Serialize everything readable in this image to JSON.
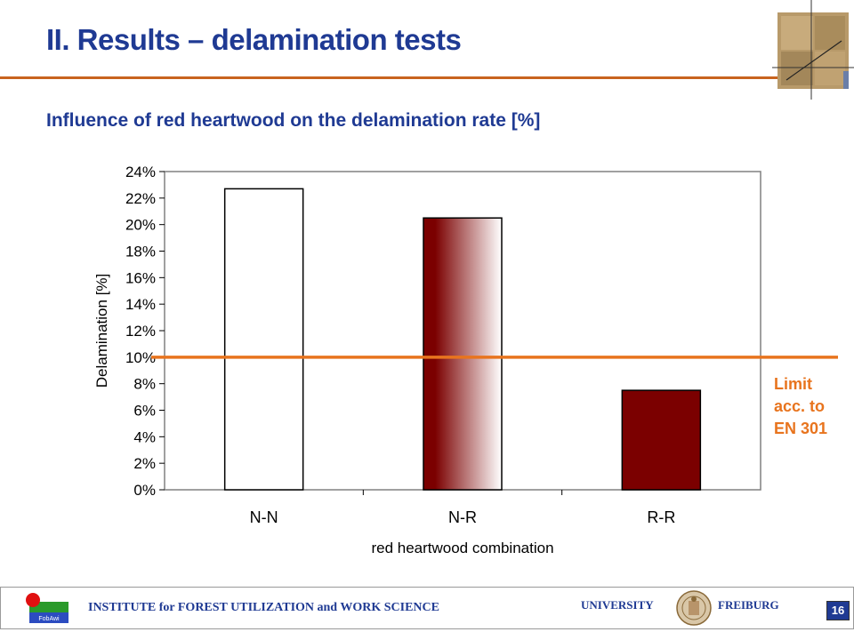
{
  "slide": {
    "title": "II. Results – delamination tests",
    "subtitle": "Influence of red heartwood on the delamination rate [%]",
    "page_number": "16"
  },
  "footer": {
    "institute": "INSTITUTE for FOREST UTILIZATION and WORK SCIENCE",
    "university": "UNIVERSITY",
    "city": "FREIBURG",
    "logo_text": "FobAwi"
  },
  "colors": {
    "accent_orange": "#e8741e",
    "title_blue": "#1f3a93",
    "bar_dark_red": "#7b0000"
  },
  "chart_data": {
    "type": "bar",
    "title": "",
    "categories": [
      "N-N",
      "N-R",
      "R-R"
    ],
    "values": [
      22.7,
      20.5,
      7.5
    ],
    "ylabel": "Delamination [%]",
    "xlabel": "red heartwood combination",
    "ylim": [
      0,
      24
    ],
    "yticks": [
      0,
      2,
      4,
      6,
      8,
      10,
      12,
      14,
      16,
      18,
      20,
      22,
      24
    ],
    "ytick_suffix": "%",
    "grid": false,
    "bar_fills": [
      "white",
      "gradient-red-white",
      "dark-red"
    ],
    "reference_line": {
      "value": 10,
      "label_lines": [
        "Limit",
        "acc. to",
        "EN 301"
      ],
      "color": "#e8741e"
    }
  }
}
